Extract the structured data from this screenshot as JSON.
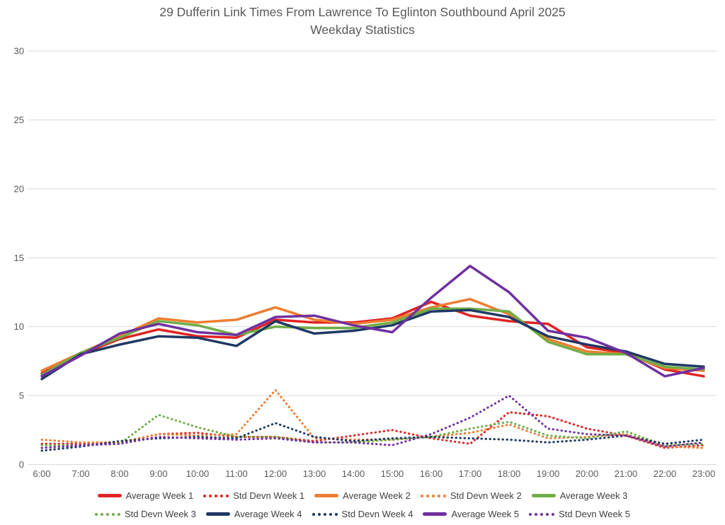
{
  "title": {
    "line1": "29 Dufferin Link Times From Lawrence To Eglinton Southbound April 2025",
    "line2": "Weekday Statistics"
  },
  "colors": {
    "week1": "#E02422",
    "week2": "#ED7D31",
    "week3": "#70AD47",
    "week4": "#203864",
    "week5": "#7030A0",
    "grid": "#D9D9D9",
    "axis_text": "#595959",
    "title_text": "#595959"
  },
  "chart_data": {
    "type": "line",
    "title": "29 Dufferin Link Times From Lawrence To Eglinton Southbound April 2025 Weekday Statistics",
    "xlabel": "",
    "ylabel": "",
    "ylim": [
      0,
      30
    ],
    "y_ticks": [
      0,
      5,
      10,
      15,
      20,
      25,
      30
    ],
    "grid": "horizontal",
    "legend_position": "bottom",
    "categories": [
      "6:00",
      "7:00",
      "8:00",
      "9:00",
      "10:00",
      "11:00",
      "12:00",
      "13:00",
      "14:00",
      "15:00",
      "16:00",
      "17:00",
      "18:00",
      "19:00",
      "20:00",
      "21:00",
      "22:00",
      "23:00"
    ],
    "series": [
      {
        "name": "Average Week 1",
        "style": "solid",
        "color": "#E02422",
        "values": [
          6.6,
          8.0,
          9.1,
          9.8,
          9.3,
          9.2,
          10.5,
          10.3,
          10.3,
          10.6,
          11.8,
          10.8,
          10.4,
          10.2,
          8.5,
          8.1,
          6.9,
          6.4
        ]
      },
      {
        "name": "Std Devn Week 1",
        "style": "dotted",
        "color": "#E02422",
        "values": [
          1.5,
          1.5,
          1.6,
          2.2,
          2.3,
          2.0,
          2.0,
          1.7,
          2.1,
          2.5,
          1.9,
          1.5,
          3.8,
          3.5,
          2.6,
          2.1,
          1.2,
          1.4
        ]
      },
      {
        "name": "Average Week 2",
        "style": "solid",
        "color": "#ED7D31",
        "values": [
          6.8,
          8.1,
          9.3,
          10.6,
          10.3,
          10.5,
          11.4,
          10.5,
          10.2,
          10.5,
          11.4,
          12.0,
          10.9,
          9.1,
          8.2,
          8.0,
          7.0,
          6.8
        ]
      },
      {
        "name": "Std Devn Week 2",
        "style": "dotted",
        "color": "#ED7D31",
        "values": [
          1.8,
          1.6,
          1.6,
          2.2,
          2.1,
          2.2,
          5.4,
          1.9,
          1.8,
          1.8,
          2.0,
          2.3,
          2.9,
          1.9,
          2.0,
          2.2,
          1.3,
          1.2
        ]
      },
      {
        "name": "Average Week 3",
        "style": "solid",
        "color": "#70AD47",
        "values": [
          6.5,
          8.1,
          9.2,
          10.4,
          10.1,
          9.4,
          10.0,
          9.9,
          9.9,
          10.3,
          11.3,
          11.3,
          11.1,
          8.9,
          8.0,
          8.0,
          7.1,
          6.9
        ]
      },
      {
        "name": "Std Devn Week 3",
        "style": "dotted",
        "color": "#70AD47",
        "values": [
          1.4,
          1.4,
          1.5,
          3.6,
          2.7,
          2.0,
          2.0,
          1.6,
          1.6,
          1.8,
          2.0,
          2.6,
          3.1,
          2.1,
          1.9,
          2.4,
          1.4,
          1.5
        ]
      },
      {
        "name": "Average Week 4",
        "style": "solid",
        "color": "#203864",
        "values": [
          6.2,
          8.0,
          8.7,
          9.3,
          9.2,
          8.6,
          10.4,
          9.5,
          9.7,
          10.1,
          11.1,
          11.2,
          10.7,
          9.3,
          8.7,
          8.2,
          7.3,
          7.1
        ]
      },
      {
        "name": "Std Devn Week 4",
        "style": "dotted",
        "color": "#203864",
        "values": [
          1.0,
          1.3,
          1.7,
          1.9,
          2.0,
          1.9,
          3.0,
          2.0,
          1.7,
          1.9,
          2.0,
          1.9,
          1.8,
          1.6,
          1.8,
          2.1,
          1.5,
          1.8
        ]
      },
      {
        "name": "Average Week 5",
        "style": "solid",
        "color": "#7030A0",
        "values": [
          6.4,
          7.9,
          9.5,
          10.2,
          9.6,
          9.4,
          10.7,
          10.8,
          10.1,
          9.6,
          12.1,
          14.4,
          12.5,
          9.7,
          9.2,
          8.1,
          6.4,
          7.0
        ]
      },
      {
        "name": "Std Devn Week 5",
        "style": "dotted",
        "color": "#7030A0",
        "values": [
          1.2,
          1.4,
          1.5,
          2.0,
          1.9,
          1.8,
          1.9,
          1.6,
          1.6,
          1.4,
          2.2,
          3.4,
          5.0,
          2.6,
          2.2,
          2.1,
          1.3,
          1.6
        ]
      }
    ]
  }
}
